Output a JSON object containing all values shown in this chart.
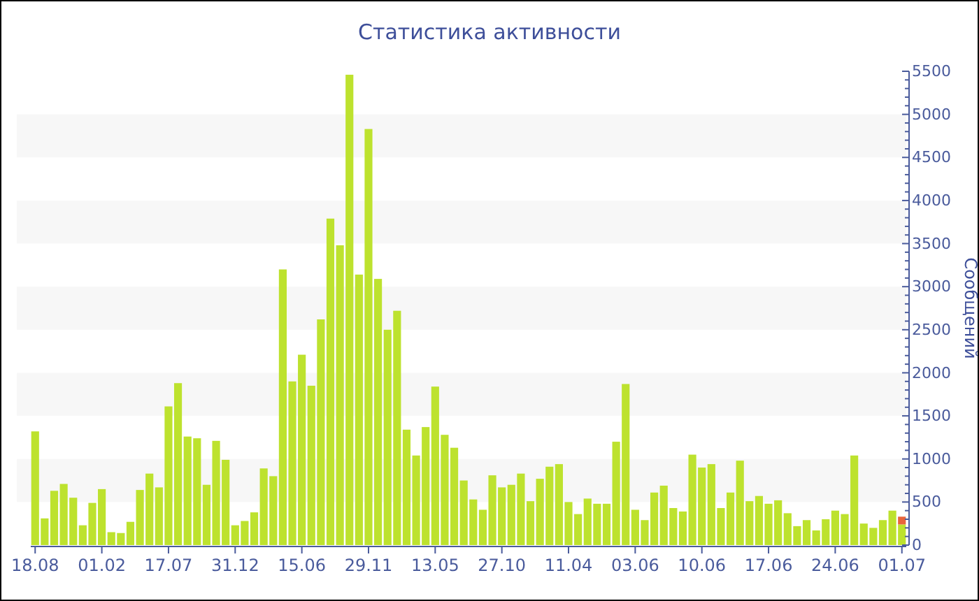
{
  "chart_data": {
    "type": "bar",
    "title": "Статистика активности",
    "ylabel": "Сообщений",
    "categories": [
      "18.08",
      null,
      null,
      null,
      null,
      null,
      null,
      "01.02",
      null,
      null,
      null,
      null,
      null,
      null,
      "17.07",
      null,
      null,
      null,
      null,
      null,
      null,
      "31.12",
      null,
      null,
      null,
      null,
      null,
      null,
      "15.06",
      null,
      null,
      null,
      null,
      null,
      null,
      "29.11",
      null,
      null,
      null,
      null,
      null,
      null,
      "13.05",
      null,
      null,
      null,
      null,
      null,
      null,
      "27.10",
      null,
      null,
      null,
      null,
      null,
      null,
      "11.04",
      null,
      null,
      null,
      null,
      null,
      null,
      "03.06",
      null,
      null,
      null,
      null,
      null,
      null,
      "10.06",
      null,
      null,
      null,
      null,
      null,
      null,
      "17.06",
      null,
      null,
      null,
      null,
      null,
      null,
      "24.06",
      null,
      null,
      null,
      null,
      null,
      null,
      "01.07"
    ],
    "stacked": true,
    "series": [
      {
        "color": "#bde22e",
        "values": [
          1320,
          310,
          630,
          710,
          550,
          230,
          490,
          650,
          150,
          140,
          270,
          640,
          830,
          670,
          1610,
          1880,
          1260,
          1240,
          700,
          1210,
          990,
          230,
          280,
          380,
          890,
          800,
          3200,
          1900,
          2210,
          1850,
          2620,
          3790,
          3480,
          5460,
          3140,
          4830,
          3090,
          2500,
          2720,
          1340,
          1040,
          1370,
          1840,
          1280,
          1130,
          750,
          530,
          410,
          810,
          670,
          700,
          830,
          510,
          770,
          910,
          940,
          500,
          360,
          540,
          480,
          480,
          1200,
          1870,
          410,
          290,
          610,
          690,
          430,
          390,
          1050,
          900,
          940,
          430,
          610,
          980,
          510,
          570,
          480,
          520,
          370,
          220,
          290,
          170,
          300,
          400,
          360,
          1040,
          250,
          200,
          290,
          400,
          240
        ]
      },
      {
        "color": "#e8643c",
        "values": [
          null,
          null,
          null,
          null,
          null,
          null,
          null,
          null,
          null,
          null,
          null,
          null,
          null,
          null,
          null,
          null,
          null,
          null,
          null,
          null,
          null,
          null,
          null,
          null,
          null,
          null,
          null,
          null,
          null,
          null,
          null,
          null,
          null,
          null,
          null,
          null,
          null,
          null,
          null,
          null,
          null,
          null,
          null,
          null,
          null,
          null,
          null,
          null,
          null,
          null,
          null,
          null,
          null,
          null,
          null,
          null,
          null,
          null,
          null,
          null,
          null,
          null,
          null,
          null,
          null,
          null,
          null,
          null,
          null,
          null,
          null,
          null,
          null,
          null,
          null,
          null,
          null,
          null,
          null,
          null,
          null,
          null,
          null,
          null,
          null,
          null,
          null,
          null,
          null,
          null,
          null,
          90
        ]
      }
    ],
    "ylim": [
      0,
      5500
    ],
    "yticks": [
      0,
      {
        "value": 100,
        "label": null
      },
      {
        "value": 200,
        "label": null
      },
      {
        "value": 300,
        "label": null
      },
      {
        "value": 400,
        "label": null
      },
      500,
      {
        "value": 600,
        "label": null
      },
      {
        "value": 700,
        "label": null
      },
      {
        "value": 800,
        "label": null
      },
      {
        "value": 900,
        "label": null
      },
      1000,
      {
        "value": 1100,
        "label": null
      },
      {
        "value": 1200,
        "label": null
      },
      {
        "value": 1300,
        "label": null
      },
      {
        "value": 1400,
        "label": null
      },
      1500,
      {
        "value": 1600,
        "label": null
      },
      {
        "value": 1700,
        "label": null
      },
      {
        "value": 1800,
        "label": null
      },
      {
        "value": 1900,
        "label": null
      },
      2000,
      {
        "value": 2100,
        "label": null
      },
      {
        "value": 2200,
        "label": null
      },
      {
        "value": 2300,
        "label": null
      },
      {
        "value": 2400,
        "label": null
      },
      2500,
      {
        "value": 2600,
        "label": null
      },
      {
        "value": 2700,
        "label": null
      },
      {
        "value": 2800,
        "label": null
      },
      {
        "value": 2900,
        "label": null
      },
      3000,
      {
        "value": 3100,
        "label": null
      },
      {
        "value": 3200,
        "label": null
      },
      {
        "value": 3300,
        "label": null
      },
      {
        "value": 3400,
        "label": null
      },
      3500,
      {
        "value": 3600,
        "label": null
      },
      {
        "value": 3700,
        "label": null
      },
      {
        "value": 3800,
        "label": null
      },
      {
        "value": 3900,
        "label": null
      },
      4000,
      {
        "value": 4100,
        "label": null
      },
      {
        "value": 4200,
        "label": null
      },
      {
        "value": 4300,
        "label": null
      },
      {
        "value": 4400,
        "label": null
      },
      4500,
      {
        "value": 4600,
        "label": null
      },
      {
        "value": 4700,
        "label": null
      },
      {
        "value": 4800,
        "label": null
      },
      {
        "value": 4900,
        "label": null
      },
      5000,
      {
        "value": 5100,
        "label": null
      },
      {
        "value": 5200,
        "label": null
      },
      {
        "value": 5300,
        "label": null
      },
      {
        "value": 5400,
        "label": null
      },
      5500
    ],
    "bands": [
      {
        "axis": "y",
        "from": 500,
        "to": 1000,
        "color": "#f7f7f7"
      },
      {
        "axis": "y",
        "from": 1500,
        "to": 2000,
        "color": "#f7f7f7"
      },
      {
        "axis": "y",
        "from": 2500,
        "to": 3000,
        "color": "#f7f7f7"
      },
      {
        "axis": "y",
        "from": 3500,
        "to": 4000,
        "color": "#f7f7f7"
      },
      {
        "axis": "y",
        "from": 4500,
        "to": 5000,
        "color": "#f7f7f7"
      }
    ],
    "grid": false
  }
}
